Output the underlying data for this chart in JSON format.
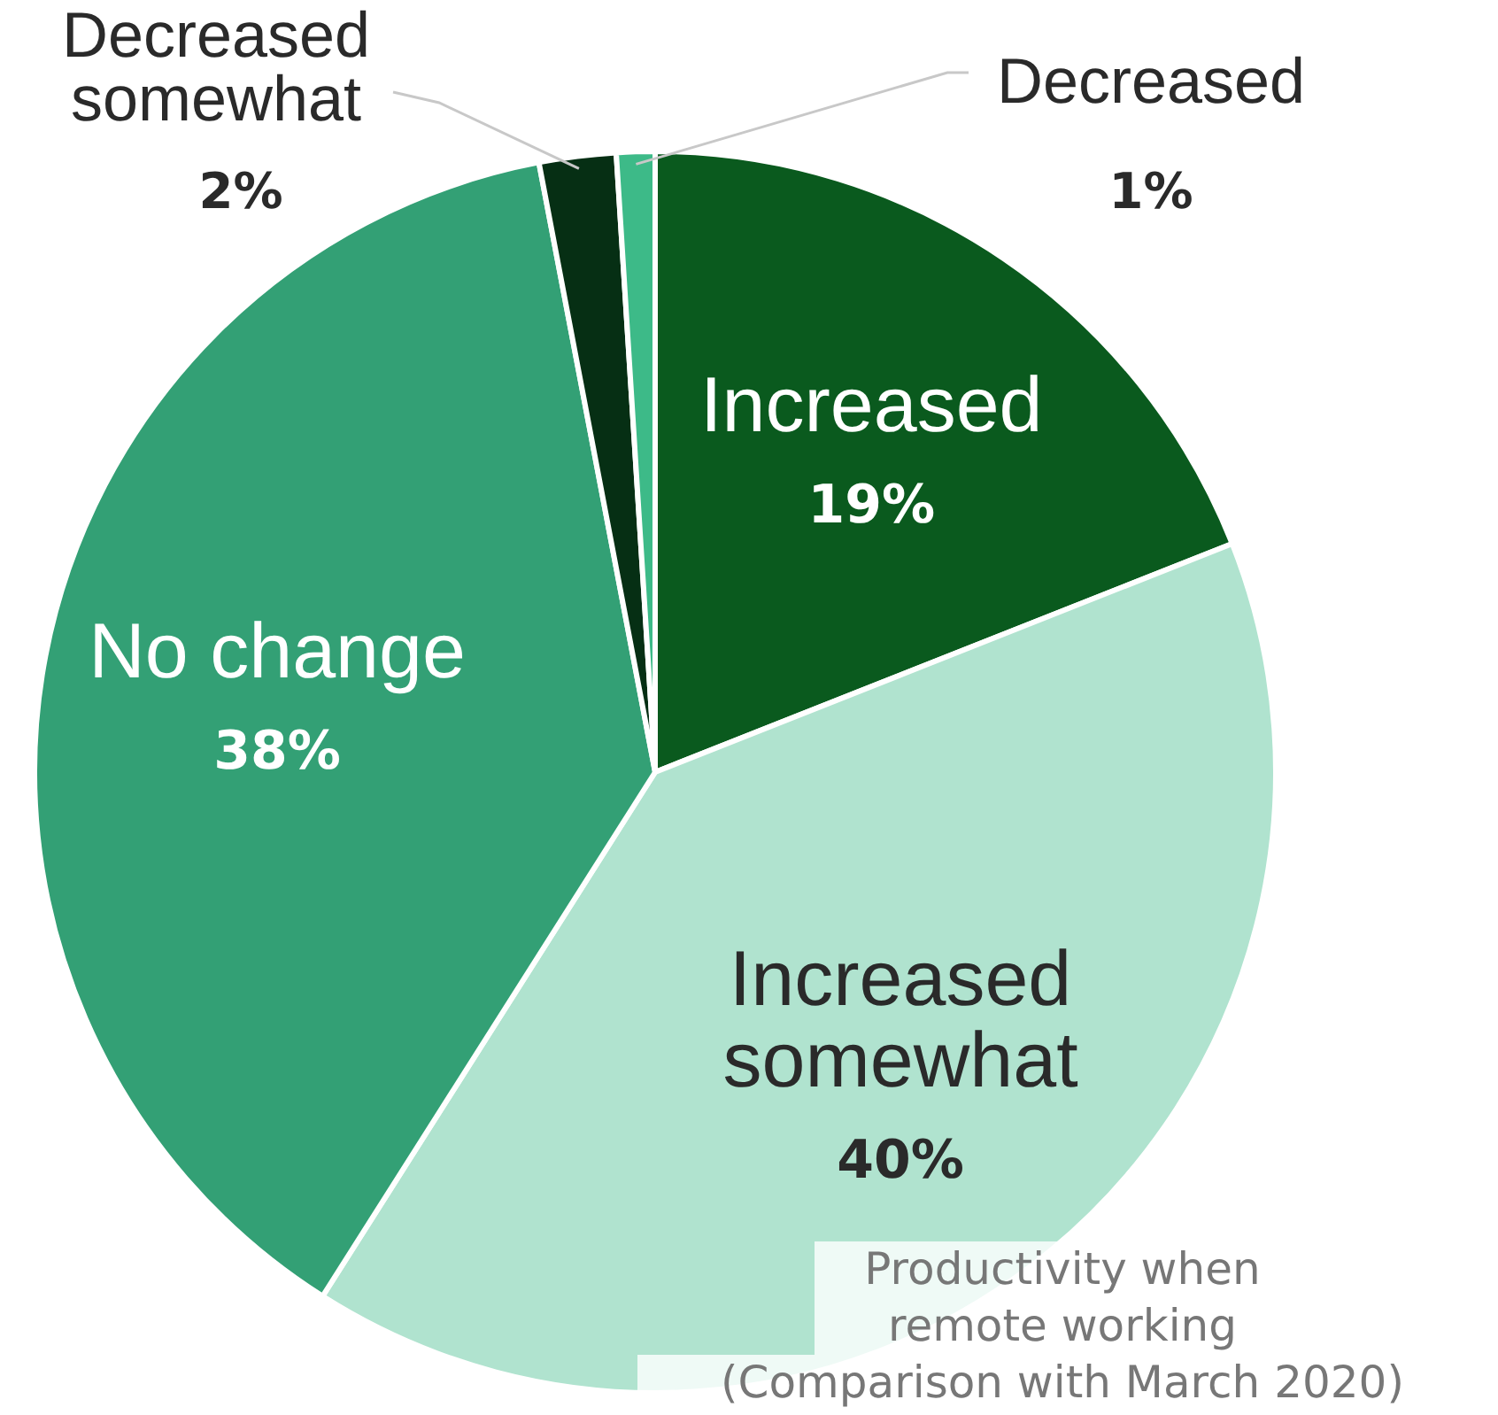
{
  "chart_data": {
    "type": "pie",
    "categories": [
      "Increased",
      "Increased somewhat",
      "No change",
      "Decreased somewhat",
      "Decreased"
    ],
    "values": [
      19,
      40,
      38,
      2,
      1
    ],
    "colors": [
      "#0a5a1e",
      "#b0e3cf",
      "#33a075",
      "#062f14",
      "#3dba88"
    ],
    "value_labels": [
      "19%",
      "40%",
      "38%",
      "2%",
      "1%"
    ],
    "annotations": [
      "Productivity when remote working",
      "(Comparison with March 2020)"
    ],
    "legend": false
  }
}
